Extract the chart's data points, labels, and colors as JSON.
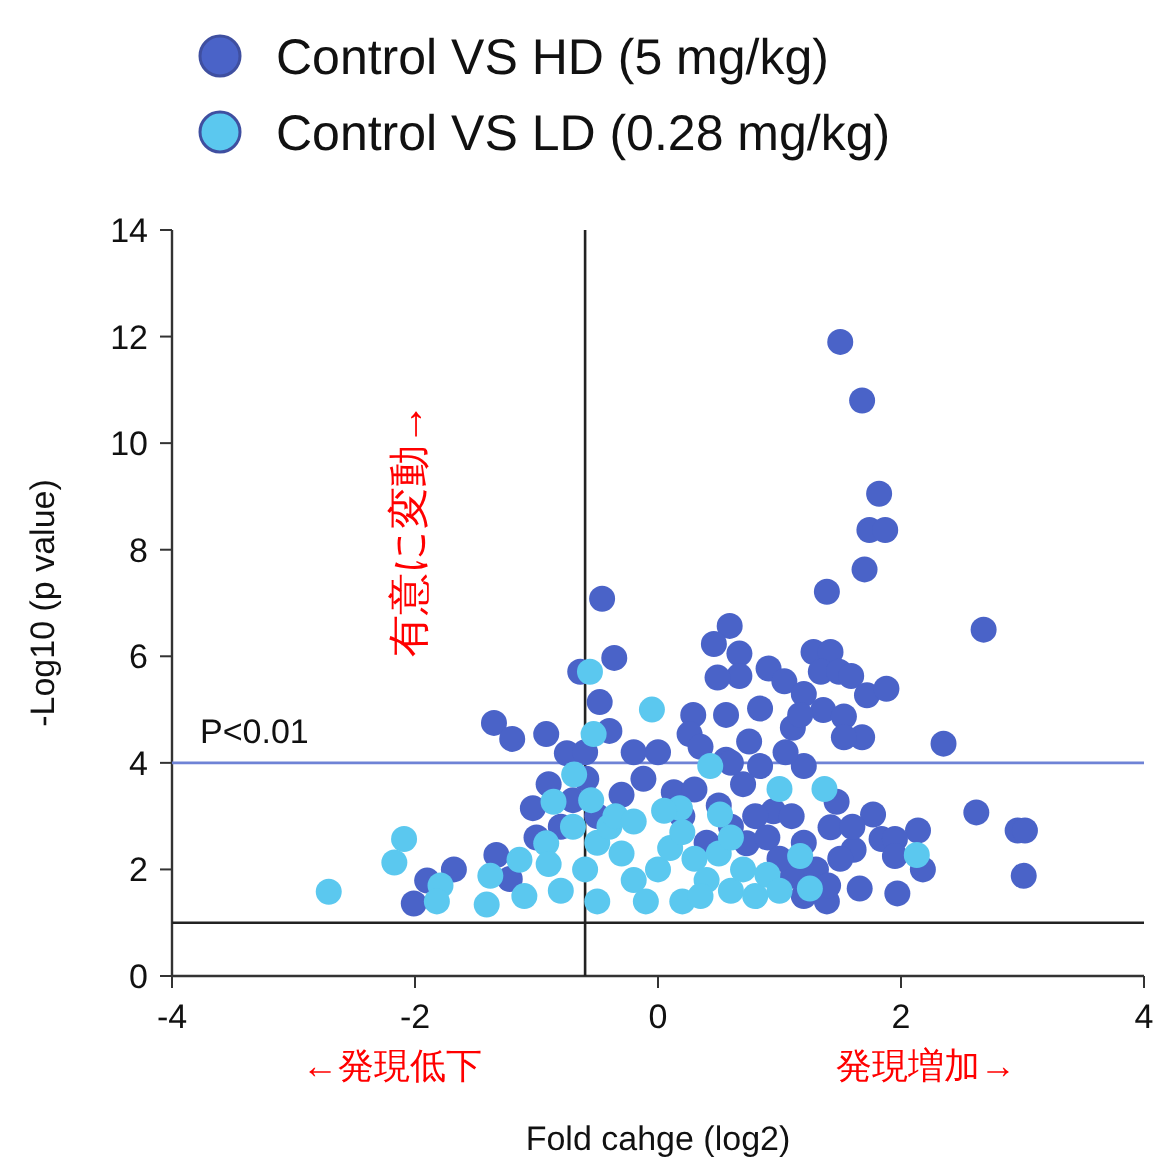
{
  "chart_data": {
    "type": "scatter",
    "xlabel": "Fold cahge (log2)",
    "ylabel": "-Log10 (p value)",
    "xlim": [
      -4,
      4
    ],
    "xticks": [
      -4,
      -2,
      0,
      2,
      4
    ],
    "ylim": [
      0,
      14
    ],
    "yticks": [
      0,
      2,
      4,
      6,
      8,
      10,
      12,
      14
    ],
    "legend": "top",
    "marker": "circle",
    "grid": false,
    "ref_lines": [
      {
        "axis": "y",
        "value": 4,
        "label": "P<0.01",
        "color": "#6f83d6"
      },
      {
        "axis": "x",
        "value": -0.6,
        "label": null,
        "color": "#222222"
      },
      {
        "axis": "y",
        "value": 1,
        "label": null,
        "color": "#222222"
      }
    ],
    "annotations": [
      "有意に変動→",
      "←発現低下",
      "発現増加→"
    ],
    "series": [
      {
        "name": "Control VS HD (5 mg/kg)",
        "color": "#4a63c8",
        "x": [
          1.5,
          1.68,
          1.82,
          1.74,
          1.87,
          1.7,
          1.39,
          2.68,
          -0.46,
          0.59,
          0.46,
          0.67,
          0.67,
          0.91,
          0.49,
          1.28,
          1.42,
          1.34,
          1.49,
          1.59,
          1.72,
          1.88,
          1.04,
          1.2,
          1.36,
          1.53,
          1.68,
          1.53,
          2.35,
          2.62,
          2.96,
          3.02,
          3.01,
          2.14,
          2.18,
          1.97,
          1.77,
          1.84,
          1.95,
          1.95,
          -0.36,
          -0.48,
          0.29,
          0.26,
          -0.12,
          1.47,
          1.42,
          1.61,
          0.84,
          0.56,
          1.11,
          1.17,
          1.2,
          0.84,
          0.56,
          0.95,
          0.73,
          1.11,
          1.39,
          1.66,
          0.13,
          -0.75,
          -0.64,
          -1.35,
          -1.2,
          -0.92,
          -1.03,
          -1.33,
          -1.68,
          -1.9,
          -2.01,
          -1.22,
          -0.59,
          0.3,
          0.5,
          0.7,
          0.8,
          0.9,
          1.0,
          1.1,
          0.6,
          0.4,
          1.2,
          1.3,
          1.4,
          0.2,
          -0.3,
          -0.5,
          -0.7,
          -0.8,
          -1.0,
          -0.2,
          -0.4,
          0.0,
          0.75,
          0.6,
          1.05,
          1.2,
          -0.9,
          -0.6,
          1.5,
          1.6,
          0.35
        ],
        "values": [
          11.9,
          10.8,
          9.05,
          8.37,
          8.37,
          7.63,
          7.21,
          6.5,
          7.08,
          6.57,
          6.23,
          6.05,
          5.63,
          5.77,
          5.6,
          6.08,
          6.08,
          5.71,
          5.71,
          5.63,
          5.27,
          5.39,
          5.53,
          5.29,
          4.99,
          4.87,
          4.48,
          4.48,
          4.36,
          3.07,
          2.73,
          2.73,
          1.88,
          2.73,
          2.0,
          1.55,
          3.03,
          2.57,
          2.57,
          2.25,
          5.97,
          5.14,
          4.9,
          4.54,
          3.7,
          3.27,
          2.79,
          2.37,
          5.02,
          4.9,
          4.66,
          4.9,
          3.94,
          3.94,
          4.06,
          3.09,
          2.49,
          1.88,
          1.4,
          1.64,
          3.45,
          4.18,
          5.71,
          4.75,
          4.45,
          4.54,
          3.15,
          2.27,
          2.0,
          1.79,
          1.36,
          1.82,
          3.7,
          3.5,
          3.2,
          3.6,
          3.0,
          2.6,
          2.2,
          3.0,
          2.8,
          2.5,
          2.5,
          2.0,
          1.7,
          3.0,
          3.4,
          3.0,
          3.3,
          2.8,
          2.6,
          4.2,
          4.6,
          4.2,
          4.4,
          4.0,
          4.2,
          1.5,
          3.6,
          4.2,
          2.2,
          2.8,
          4.3
        ]
      },
      {
        "name": "Control VS LD (0.28 mg/kg)",
        "color": "#5bc8ef",
        "x": [
          -0.56,
          -2.71,
          -2.09,
          -2.17,
          -1.79,
          -1.82,
          -1.41,
          -1.38,
          -1.14,
          -0.86,
          -0.92,
          -0.05,
          -0.53,
          -0.69,
          0.43,
          1.0,
          1.37,
          2.13,
          1.25,
          1.17,
          0.51,
          0.18,
          -0.8,
          -0.6,
          -0.5,
          -0.4,
          -0.3,
          -0.2,
          0.0,
          0.1,
          0.2,
          0.3,
          0.4,
          0.5,
          0.6,
          0.7,
          0.8,
          -0.1,
          0.2,
          -0.5,
          -0.9,
          -1.1,
          0.9,
          -0.55,
          -0.35,
          0.05,
          -0.2,
          0.6,
          -0.7,
          1.0,
          0.35
        ],
        "values": [
          5.71,
          1.58,
          2.57,
          2.13,
          1.7,
          1.4,
          1.34,
          1.88,
          2.18,
          3.27,
          2.49,
          5.0,
          4.54,
          3.78,
          3.94,
          3.51,
          3.51,
          2.27,
          1.64,
          2.25,
          3.03,
          3.15,
          1.6,
          2.0,
          2.5,
          2.8,
          2.3,
          1.8,
          2.0,
          2.4,
          2.7,
          2.2,
          1.8,
          2.3,
          1.6,
          2.0,
          1.5,
          1.4,
          1.4,
          1.4,
          2.1,
          1.5,
          1.9,
          3.3,
          3.0,
          3.1,
          2.9,
          2.6,
          2.8,
          1.6,
          1.5
        ]
      }
    ]
  }
}
